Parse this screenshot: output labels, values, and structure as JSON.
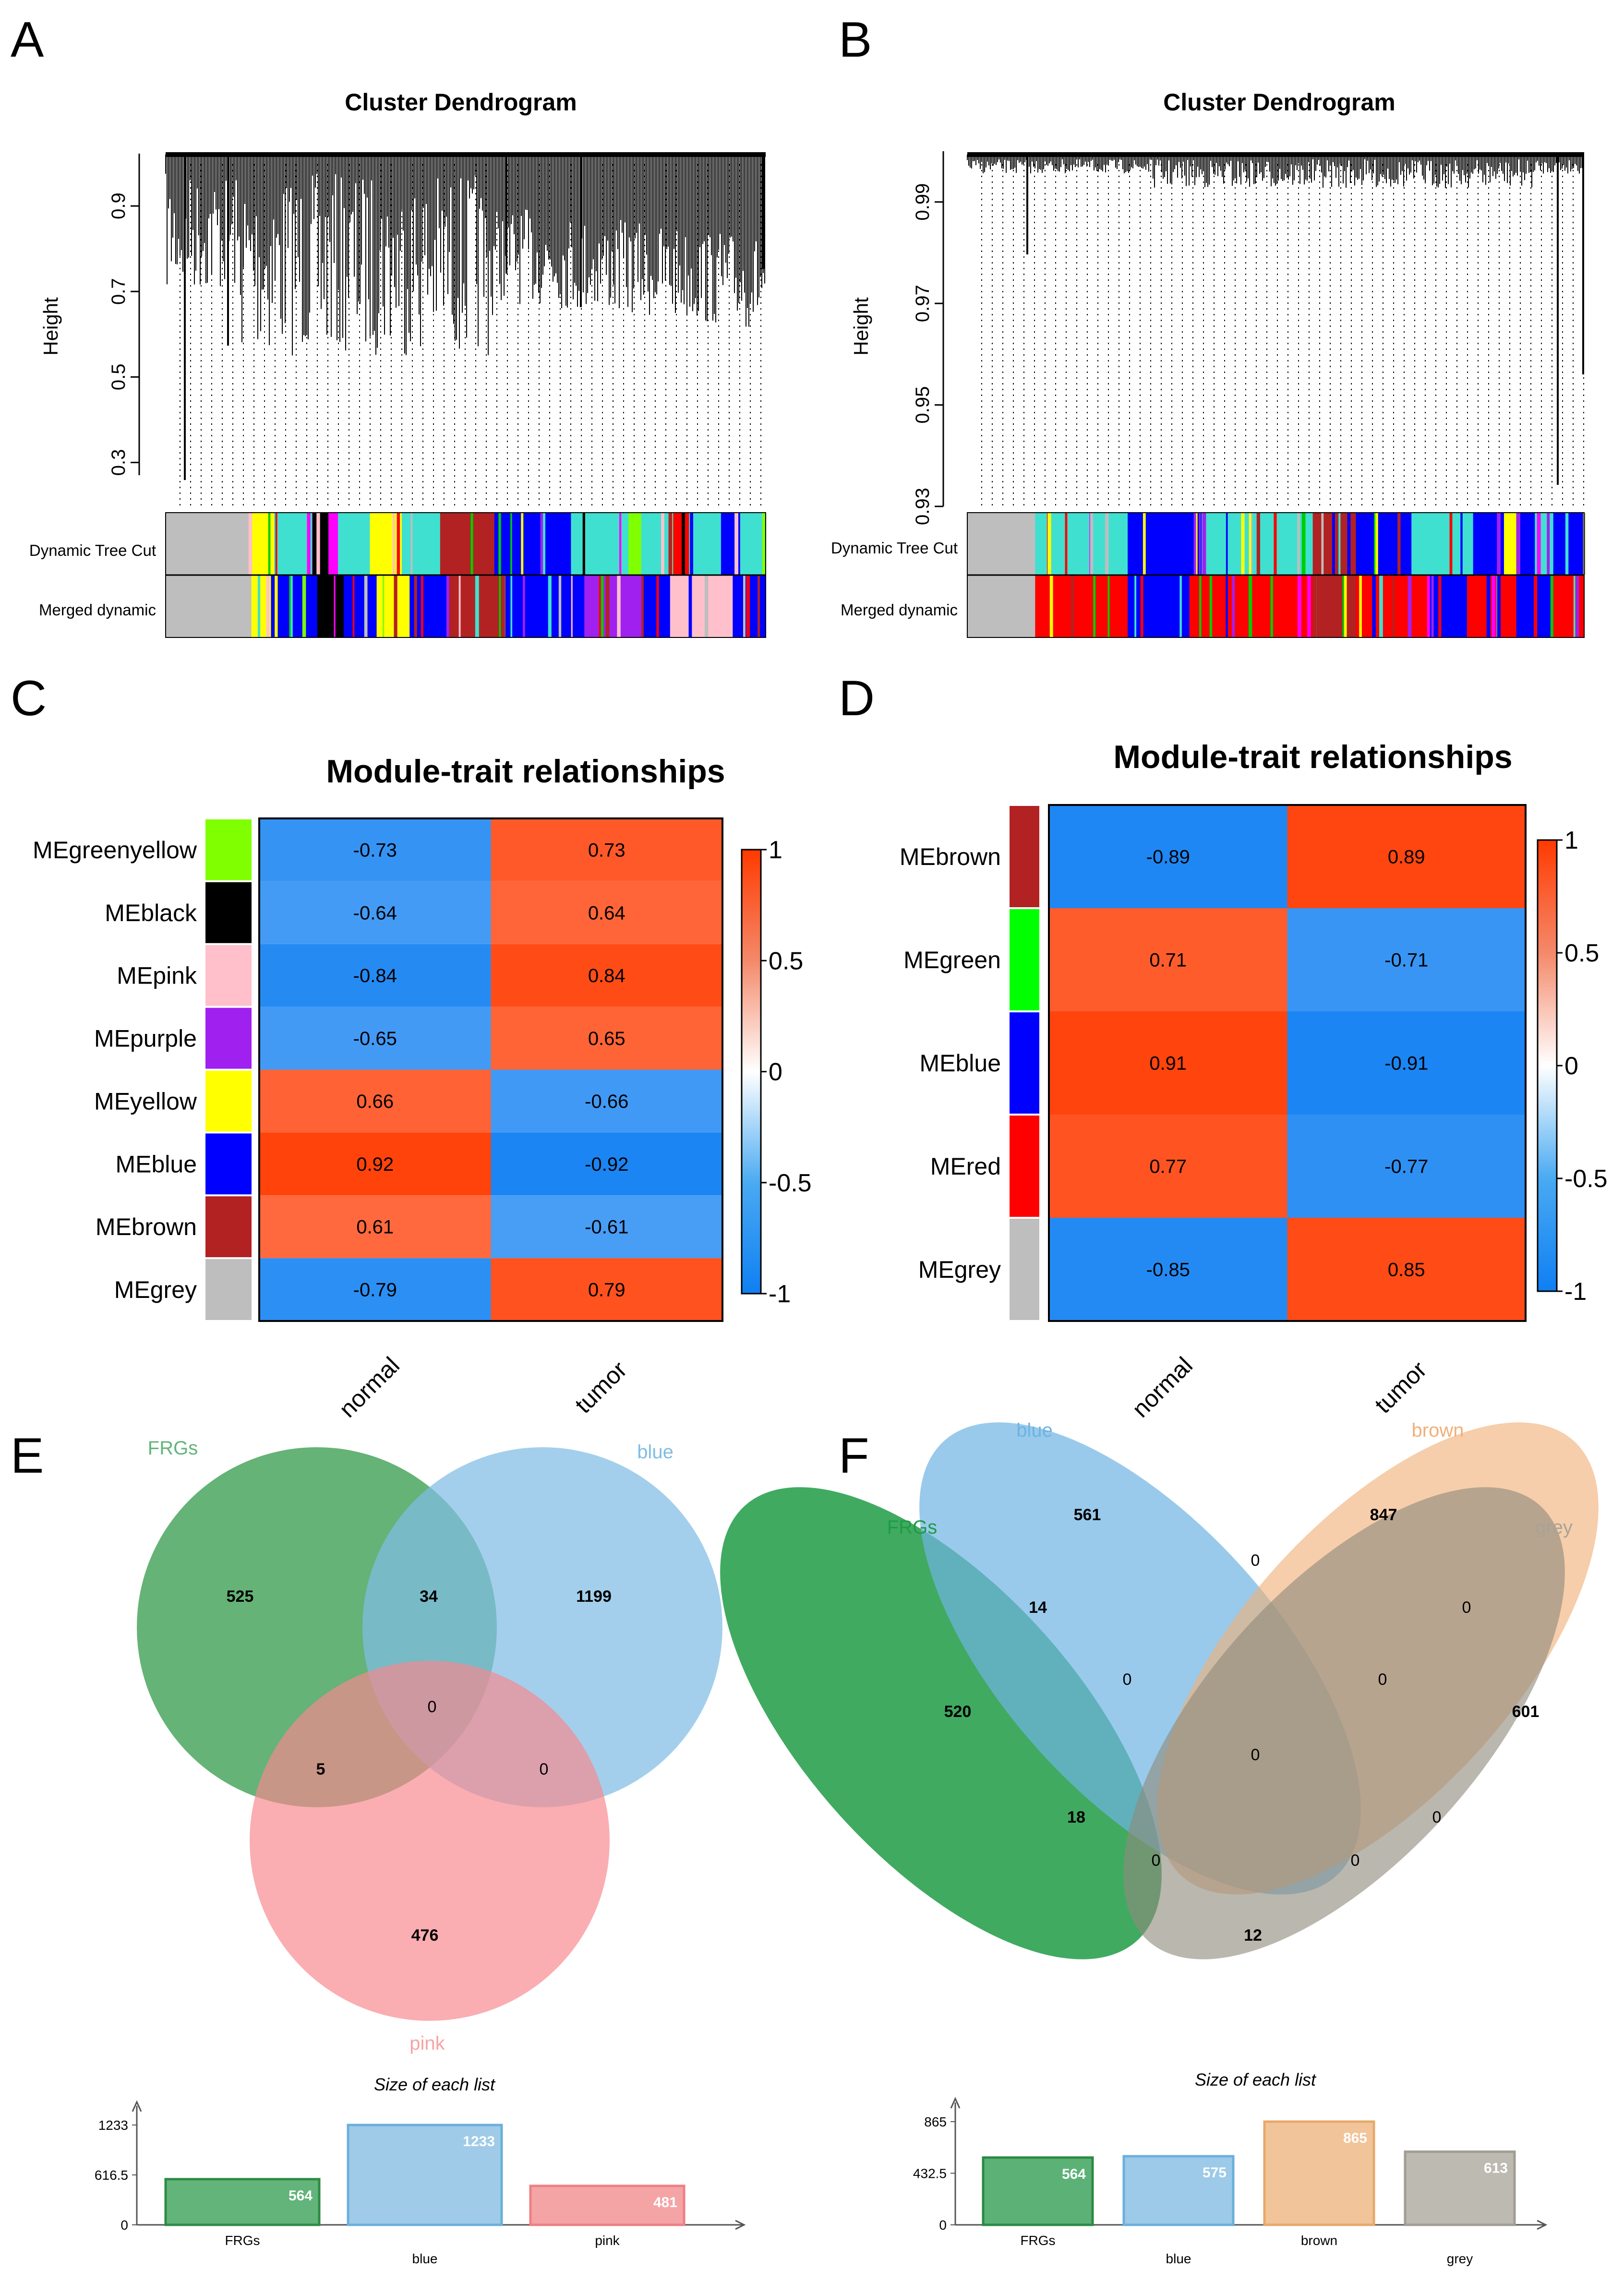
{
  "panel_letters": [
    "A",
    "B",
    "C",
    "D",
    "E",
    "F"
  ],
  "chart_data": [
    {
      "panel": "A",
      "type": "dendrogram",
      "title": "Cluster Dendrogram",
      "ylabel": "Height",
      "ylim": [
        0.25,
        1.0
      ],
      "yticks": [
        "0.3",
        "0.5",
        "0.7",
        "0.9"
      ],
      "color_rows": [
        "Dynamic Tree Cut",
        "Merged dynamic"
      ],
      "colors": {
        "grey": "#bebebe",
        "yellow": "#ffff00",
        "black": "#000000",
        "magenta": "#ff00ff",
        "green": "#00cd00",
        "turquoise": "#40e0d0",
        "blue": "#0000ff",
        "purple": "#a020f0",
        "brown": "#b22222",
        "red": "#ff0000",
        "pink": "#ffc0cb",
        "greenyellow": "#7fff00"
      },
      "dynamic_segments": [
        [
          "grey",
          0.13
        ],
        [
          "yellow",
          0.04
        ],
        [
          "turquoise",
          0.06
        ],
        [
          "black",
          0.025
        ],
        [
          "magenta",
          0.015
        ],
        [
          "turquoise",
          0.05
        ],
        [
          "yellow",
          0.05
        ],
        [
          "turquoise",
          0.06
        ],
        [
          "brown",
          0.085
        ],
        [
          "blue",
          0.12
        ],
        [
          "turquoise",
          0.09
        ],
        [
          "greenyellow",
          0.02
        ],
        [
          "turquoise",
          0.05
        ],
        [
          "red",
          0.025
        ],
        [
          "turquoise",
          0.05
        ],
        [
          "blue",
          0.03
        ],
        [
          "turquoise",
          0.04
        ]
      ],
      "merged_segments": [
        [
          "grey",
          0.13
        ],
        [
          "yellow",
          0.04
        ],
        [
          "blue",
          0.06
        ],
        [
          "black",
          0.04
        ],
        [
          "blue",
          0.05
        ],
        [
          "yellow",
          0.05
        ],
        [
          "blue",
          0.06
        ],
        [
          "brown",
          0.085
        ],
        [
          "blue",
          0.12
        ],
        [
          "purple",
          0.09
        ],
        [
          "blue",
          0.04
        ],
        [
          "pink",
          0.095
        ],
        [
          "blue",
          0.05
        ]
      ]
    },
    {
      "panel": "B",
      "type": "dendrogram",
      "title": "Cluster Dendrogram",
      "ylabel": "Height",
      "ylim": [
        0.93,
        1.0
      ],
      "yticks": [
        "0.93",
        "0.95",
        "0.97",
        "0.99"
      ],
      "color_rows": [
        "Dynamic Tree Cut",
        "Merged dynamic"
      ],
      "colors": {
        "grey": "#bebebe",
        "green": "#00cd00",
        "turquoise": "#40e0d0",
        "blue": "#0000ff",
        "yellow": "#ffff00",
        "red": "#ff0000",
        "brown": "#b22222",
        "purple": "#a020f0",
        "magenta": "#ff00ff"
      },
      "dynamic_segments": [
        [
          "grey",
          0.11
        ],
        [
          "turquoise",
          0.15
        ],
        [
          "blue",
          0.12
        ],
        [
          "turquoise",
          0.18
        ],
        [
          "brown",
          0.07
        ],
        [
          "blue",
          0.09
        ],
        [
          "turquoise",
          0.1
        ],
        [
          "blue",
          0.05
        ],
        [
          "yellow",
          0.02
        ],
        [
          "blue",
          0.03
        ],
        [
          "turquoise",
          0.03
        ],
        [
          "blue",
          0.05
        ]
      ],
      "merged_segments": [
        [
          "grey",
          0.11
        ],
        [
          "red",
          0.15
        ],
        [
          "blue",
          0.1
        ],
        [
          "red",
          0.2
        ],
        [
          "brown",
          0.07
        ],
        [
          "red",
          0.12
        ],
        [
          "blue",
          0.06
        ],
        [
          "red",
          0.08
        ],
        [
          "blue",
          0.06
        ],
        [
          "red",
          0.05
        ]
      ]
    },
    {
      "panel": "C",
      "type": "heatmap",
      "title": "Module-trait relationships",
      "rows": [
        "MEgreenyellow",
        "MEblack",
        "MEpink",
        "MEpurple",
        "MEyellow",
        "MEblue",
        "MEbrown",
        "MEgrey"
      ],
      "row_colors": [
        "#7fff00",
        "#000000",
        "#ffc0cb",
        "#a020f0",
        "#ffff00",
        "#0000ff",
        "#b22222",
        "#bebebe"
      ],
      "columns": [
        "normal",
        "tumor"
      ],
      "values": [
        [
          -0.73,
          0.73
        ],
        [
          -0.64,
          0.64
        ],
        [
          -0.84,
          0.84
        ],
        [
          -0.65,
          0.65
        ],
        [
          0.66,
          -0.66
        ],
        [
          0.92,
          -0.92
        ],
        [
          0.61,
          -0.61
        ],
        [
          -0.79,
          0.79
        ]
      ],
      "labels": [
        [
          "-0.73",
          "0.73"
        ],
        [
          "-0.64",
          "0.64"
        ],
        [
          "-0.84",
          "0.84"
        ],
        [
          "-0.65",
          "0.65"
        ],
        [
          "0.66",
          "-0.66"
        ],
        [
          "0.92",
          "-0.92"
        ],
        [
          "0.61",
          "-0.61"
        ],
        [
          "-0.79",
          "0.79"
        ]
      ],
      "color_range": [
        -1,
        1
      ],
      "legend_ticks": [
        "1",
        "0.5",
        "0",
        "-0.5",
        "-1"
      ]
    },
    {
      "panel": "D",
      "type": "heatmap",
      "title": "Module-trait relationships",
      "rows": [
        "MEbrown",
        "MEgreen",
        "MEblue",
        "MEred",
        "MEgrey"
      ],
      "row_colors": [
        "#b22222",
        "#00ff00",
        "#0000ff",
        "#ff0000",
        "#bebebe"
      ],
      "columns": [
        "normal",
        "tumor"
      ],
      "values": [
        [
          -0.89,
          0.89
        ],
        [
          0.71,
          -0.71
        ],
        [
          0.91,
          -0.91
        ],
        [
          0.77,
          -0.77
        ],
        [
          -0.85,
          0.85
        ]
      ],
      "labels": [
        [
          "-0.89",
          "0.89"
        ],
        [
          "0.71",
          "-0.71"
        ],
        [
          "0.91",
          "-0.91"
        ],
        [
          "0.77",
          "-0.77"
        ],
        [
          "-0.85",
          "0.85"
        ]
      ],
      "color_range": [
        -1,
        1
      ],
      "legend_ticks": [
        "1",
        "0.5",
        "0",
        "-0.5",
        "-1"
      ]
    },
    {
      "panel": "E",
      "type": "venn",
      "sets": [
        {
          "name": "FRGs",
          "color": "#3a9e4f"
        },
        {
          "name": "blue",
          "color": "#7fbde4"
        },
        {
          "name": "pink",
          "color": "#f7888d"
        }
      ],
      "regions": [
        "525",
        "34",
        "1199",
        "0",
        "5",
        "0",
        "476"
      ],
      "bar_title": "Size of each list",
      "bar_categories": [
        "FRGs",
        "blue",
        "pink"
      ],
      "bar_values": [
        564,
        1233,
        481
      ],
      "bar_value_labels": [
        "564",
        "1233",
        "481"
      ],
      "bar_ticks": [
        "1233",
        "616.5",
        "0"
      ],
      "bar_max": 1233,
      "bar_colors": [
        "#62b47a",
        "#9fcbe8",
        "#f5a4a6"
      ],
      "bar_edges": [
        "#2e8b45",
        "#6aafdc",
        "#ee7f83"
      ]
    },
    {
      "panel": "F",
      "type": "venn",
      "sets": [
        {
          "name": "FRGs",
          "color": "#1e9b45"
        },
        {
          "name": "blue",
          "color": "#6db3e2"
        },
        {
          "name": "brown",
          "color": "#f0b078"
        },
        {
          "name": "grey",
          "color": "#a8a397"
        }
      ],
      "regions": [
        "561",
        "847",
        "520",
        "601",
        "14",
        "0",
        "0",
        "0",
        "0",
        "0",
        "18",
        "0",
        "0",
        "0",
        "12"
      ],
      "bar_title": "Size of each list",
      "bar_categories": [
        "FRGs",
        "blue",
        "brown",
        "grey"
      ],
      "bar_values": [
        564,
        575,
        865,
        613
      ],
      "bar_value_labels": [
        "564",
        "575",
        "865",
        "613"
      ],
      "bar_ticks": [
        "865",
        "432.5",
        "0"
      ],
      "bar_max": 865,
      "bar_colors": [
        "#5cb276",
        "#9ccae8",
        "#f1c49a",
        "#bdbab1"
      ],
      "bar_edges": [
        "#2a8a44",
        "#6aafdc",
        "#e8a868",
        "#a19d92"
      ]
    }
  ]
}
